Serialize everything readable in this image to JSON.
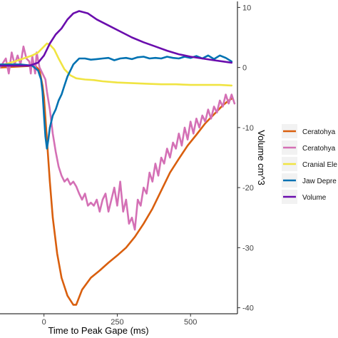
{
  "chart_data": {
    "type": "line",
    "title": "",
    "xlabel": "Time to Peak Gape (ms)",
    "ylabel": "Volume cm^3",
    "xlim": [
      -150,
      660
    ],
    "ylim": [
      -41,
      11
    ],
    "x_ticks": [
      0,
      250,
      500
    ],
    "y_ticks": [
      10,
      0,
      -10,
      -20,
      -30,
      -40
    ],
    "grid": false,
    "legend_position": "right",
    "series": [
      {
        "name": "Ceratohya",
        "color": "#d95f0e",
        "points": [
          [
            -150,
            0
          ],
          [
            -30,
            0.3
          ],
          [
            -15,
            -0.5
          ],
          [
            -5,
            -3
          ],
          [
            0,
            -5
          ],
          [
            10,
            -12
          ],
          [
            20,
            -19
          ],
          [
            30,
            -25
          ],
          [
            45,
            -31
          ],
          [
            60,
            -35
          ],
          [
            80,
            -38
          ],
          [
            100,
            -39.5
          ],
          [
            110,
            -39.5
          ],
          [
            130,
            -37
          ],
          [
            160,
            -35
          ],
          [
            190,
            -33.8
          ],
          [
            220,
            -32.5
          ],
          [
            250,
            -31.3
          ],
          [
            280,
            -30
          ],
          [
            310,
            -28.2
          ],
          [
            340,
            -26
          ],
          [
            370,
            -23.5
          ],
          [
            400,
            -20.5
          ],
          [
            430,
            -17.5
          ],
          [
            460,
            -15.2
          ],
          [
            490,
            -13
          ],
          [
            520,
            -11.2
          ],
          [
            550,
            -9.3
          ],
          [
            580,
            -7.8
          ],
          [
            610,
            -6.3
          ],
          [
            630,
            -5.5
          ],
          [
            640,
            -5.2
          ]
        ]
      },
      {
        "name": "Ceratohya",
        "color": "#d470b5",
        "points": [
          [
            -150,
            0
          ],
          [
            -130,
            1.5
          ],
          [
            -120,
            -1
          ],
          [
            -110,
            2.5
          ],
          [
            -100,
            0.5
          ],
          [
            -90,
            2
          ],
          [
            -80,
            0.5
          ],
          [
            -70,
            3.5
          ],
          [
            -60,
            1.5
          ],
          [
            -50,
            1
          ],
          [
            -45,
            -1
          ],
          [
            -40,
            2
          ],
          [
            -30,
            -1
          ],
          [
            -25,
            2.5
          ],
          [
            -15,
            0
          ],
          [
            -5,
            -1
          ],
          [
            5,
            -2
          ],
          [
            10,
            -4
          ],
          [
            20,
            -7
          ],
          [
            30,
            -11
          ],
          [
            40,
            -14
          ],
          [
            50,
            -16.5
          ],
          [
            60,
            -18
          ],
          [
            70,
            -19
          ],
          [
            80,
            -18.5
          ],
          [
            90,
            -19.5
          ],
          [
            100,
            -19
          ],
          [
            110,
            -19.8
          ],
          [
            120,
            -21
          ],
          [
            130,
            -22
          ],
          [
            140,
            -21
          ],
          [
            150,
            -23
          ],
          [
            160,
            -22.5
          ],
          [
            170,
            -23
          ],
          [
            180,
            -22
          ],
          [
            190,
            -24
          ],
          [
            200,
            -22
          ],
          [
            210,
            -21
          ],
          [
            220,
            -24
          ],
          [
            230,
            -22
          ],
          [
            240,
            -20
          ],
          [
            250,
            -23
          ],
          [
            260,
            -19
          ],
          [
            270,
            -24
          ],
          [
            280,
            -22
          ],
          [
            290,
            -26
          ],
          [
            300,
            -25
          ],
          [
            310,
            -27
          ],
          [
            320,
            -22
          ],
          [
            330,
            -23
          ],
          [
            340,
            -20
          ],
          [
            350,
            -21
          ],
          [
            360,
            -17.5
          ],
          [
            370,
            -19
          ],
          [
            380,
            -16
          ],
          [
            390,
            -18
          ],
          [
            400,
            -15
          ],
          [
            410,
            -16
          ],
          [
            420,
            -13.5
          ],
          [
            430,
            -15
          ],
          [
            440,
            -12.5
          ],
          [
            450,
            -13.5
          ],
          [
            460,
            -11
          ],
          [
            470,
            -13
          ],
          [
            480,
            -10
          ],
          [
            490,
            -12
          ],
          [
            500,
            -9
          ],
          [
            510,
            -11
          ],
          [
            520,
            -8.5
          ],
          [
            530,
            -10
          ],
          [
            540,
            -8
          ],
          [
            550,
            -9
          ],
          [
            560,
            -7
          ],
          [
            570,
            -8.5
          ],
          [
            580,
            -6.5
          ],
          [
            590,
            -7.5
          ],
          [
            600,
            -5.5
          ],
          [
            610,
            -6.5
          ],
          [
            620,
            -4.5
          ],
          [
            630,
            -6
          ],
          [
            640,
            -4.5
          ],
          [
            650,
            -6
          ]
        ]
      },
      {
        "name": "Cranial Ele",
        "color": "#f0e442",
        "points": [
          [
            -150,
            0.3
          ],
          [
            -100,
            1
          ],
          [
            -70,
            1.5
          ],
          [
            -40,
            2
          ],
          [
            -20,
            2.5
          ],
          [
            0,
            3.5
          ],
          [
            10,
            4
          ],
          [
            20,
            3.8
          ],
          [
            35,
            3
          ],
          [
            50,
            1.5
          ],
          [
            70,
            -0.3
          ],
          [
            90,
            -1.3
          ],
          [
            110,
            -1.8
          ],
          [
            140,
            -2
          ],
          [
            170,
            -2.1
          ],
          [
            200,
            -2.3
          ],
          [
            250,
            -2.5
          ],
          [
            300,
            -2.6
          ],
          [
            350,
            -2.7
          ],
          [
            400,
            -2.8
          ],
          [
            450,
            -2.8
          ],
          [
            500,
            -2.9
          ],
          [
            550,
            -2.9
          ],
          [
            600,
            -2.9
          ],
          [
            640,
            -3
          ]
        ]
      },
      {
        "name": "Jaw Depre",
        "color": "#0072b2",
        "points": [
          [
            -150,
            0.5
          ],
          [
            -80,
            0.5
          ],
          [
            -40,
            0.3
          ],
          [
            -20,
            -0.5
          ],
          [
            -10,
            -2
          ],
          [
            -5,
            -4
          ],
          [
            0,
            -8
          ],
          [
            5,
            -11.5
          ],
          [
            10,
            -13.5
          ],
          [
            15,
            -12
          ],
          [
            20,
            -10
          ],
          [
            30,
            -8
          ],
          [
            40,
            -7
          ],
          [
            50,
            -5.5
          ],
          [
            60,
            -4.5
          ],
          [
            70,
            -3
          ],
          [
            80,
            -1.5
          ],
          [
            90,
            -0.5
          ],
          [
            100,
            0.5
          ],
          [
            110,
            1
          ],
          [
            120,
            1.5
          ],
          [
            140,
            1.5
          ],
          [
            160,
            1.3
          ],
          [
            180,
            1.4
          ],
          [
            200,
            1.5
          ],
          [
            220,
            1.6
          ],
          [
            240,
            1.2
          ],
          [
            260,
            1.5
          ],
          [
            280,
            1.6
          ],
          [
            300,
            1.4
          ],
          [
            320,
            1.7
          ],
          [
            340,
            1.8
          ],
          [
            360,
            1.5
          ],
          [
            380,
            1.6
          ],
          [
            400,
            1.5
          ],
          [
            420,
            1.8
          ],
          [
            440,
            1.6
          ],
          [
            460,
            1.5
          ],
          [
            480,
            1.8
          ],
          [
            500,
            1.6
          ],
          [
            520,
            1.9
          ],
          [
            540,
            1.5
          ],
          [
            560,
            2
          ],
          [
            580,
            1.4
          ],
          [
            600,
            2
          ],
          [
            620,
            1.6
          ],
          [
            640,
            1
          ]
        ]
      },
      {
        "name": "Volume",
        "color": "#6a0dad",
        "points": [
          [
            -150,
            0.3
          ],
          [
            -50,
            0.3
          ],
          [
            -20,
            0.8
          ],
          [
            0,
            2
          ],
          [
            20,
            4
          ],
          [
            40,
            5.5
          ],
          [
            60,
            6.5
          ],
          [
            80,
            8
          ],
          [
            100,
            9
          ],
          [
            120,
            9.4
          ],
          [
            150,
            9
          ],
          [
            180,
            8
          ],
          [
            220,
            7
          ],
          [
            260,
            6
          ],
          [
            300,
            5
          ],
          [
            340,
            4.2
          ],
          [
            380,
            3.5
          ],
          [
            420,
            2.8
          ],
          [
            460,
            2.2
          ],
          [
            500,
            1.8
          ],
          [
            540,
            1.5
          ],
          [
            580,
            1.2
          ],
          [
            610,
            1
          ],
          [
            640,
            0.8
          ]
        ]
      }
    ]
  }
}
